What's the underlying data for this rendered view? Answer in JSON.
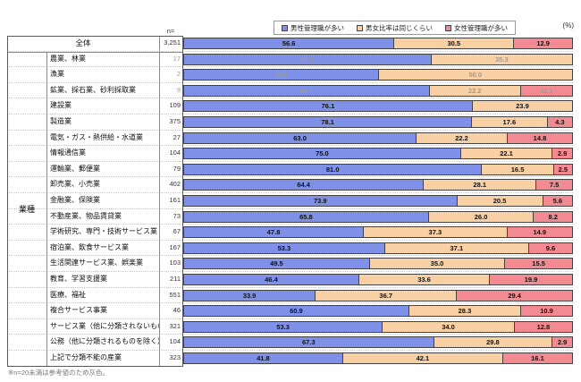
{
  "unit_label": "(%)",
  "n_header": "n=",
  "group_label": "業種",
  "footnote": "※n=20未満は参考値のため灰色。",
  "total_n": "3,251",
  "chart_data": {
    "type": "bar",
    "stacked": true,
    "orientation": "horizontal",
    "unit": "%",
    "xlim": [
      0,
      100
    ],
    "legend_position": "top",
    "grid": false,
    "series": [
      {
        "name": "男性管理職が多い",
        "color": "#7E90E8",
        "edge": "#434343"
      },
      {
        "name": "男女比率は同じくらい",
        "color": "#F8D0A4",
        "edge": "#434343"
      },
      {
        "name": "女性管理職が多い",
        "color": "#F38A92",
        "edge": "#434343"
      }
    ],
    "reference_note": "n<20 rows shown in gray",
    "rows": [
      {
        "label": "全体",
        "n": "3,251",
        "values": [
          56.6,
          30.5,
          12.9
        ],
        "reference": false,
        "total": true
      },
      {
        "label": "農業、林業",
        "n": "17",
        "values": [
          64.7,
          35.3,
          0
        ],
        "reference": true,
        "total": false
      },
      {
        "label": "漁業",
        "n": "2",
        "values": [
          50.0,
          50.0,
          0
        ],
        "reference": true,
        "total": false
      },
      {
        "label": "鉱業、採石業、砂利採取業",
        "n": "9",
        "values": [
          66.7,
          22.2,
          11.1
        ],
        "reference": true,
        "total": false
      },
      {
        "label": "建設業",
        "n": "109",
        "values": [
          76.1,
          23.9,
          0
        ],
        "reference": false,
        "total": false
      },
      {
        "label": "製造業",
        "n": "375",
        "values": [
          78.1,
          17.6,
          4.3
        ],
        "reference": false,
        "total": false
      },
      {
        "label": "電気・ガス・熱供給・水道業",
        "n": "27",
        "values": [
          63.0,
          22.2,
          14.8
        ],
        "reference": false,
        "total": false
      },
      {
        "label": "情報通信業",
        "n": "104",
        "values": [
          75.0,
          22.1,
          2.9
        ],
        "reference": false,
        "total": false
      },
      {
        "label": "運輸業、郵便業",
        "n": "79",
        "values": [
          81.0,
          16.5,
          2.5
        ],
        "reference": false,
        "total": false
      },
      {
        "label": "卸売業、小売業",
        "n": "402",
        "values": [
          64.4,
          28.1,
          7.5
        ],
        "reference": false,
        "total": false
      },
      {
        "label": "金融業、保険業",
        "n": "161",
        "values": [
          73.9,
          20.5,
          5.6
        ],
        "reference": false,
        "total": false
      },
      {
        "label": "不動産業、物品賃貸業",
        "n": "73",
        "values": [
          65.8,
          26.0,
          8.2
        ],
        "reference": false,
        "total": false
      },
      {
        "label": "学術研究、専門・技術サービス業",
        "n": "67",
        "values": [
          47.8,
          37.3,
          14.9
        ],
        "reference": false,
        "total": false
      },
      {
        "label": "宿泊業、飲食サービス業",
        "n": "167",
        "values": [
          53.3,
          37.1,
          9.6
        ],
        "reference": false,
        "total": false
      },
      {
        "label": "生活関連サービス業、娯楽業",
        "n": "103",
        "values": [
          49.5,
          35.0,
          15.5
        ],
        "reference": false,
        "total": false
      },
      {
        "label": "教育、学習支援業",
        "n": "211",
        "values": [
          46.4,
          33.6,
          19.9
        ],
        "reference": false,
        "total": false
      },
      {
        "label": "医療、福祉",
        "n": "551",
        "values": [
          33.9,
          36.7,
          29.4
        ],
        "reference": false,
        "total": false
      },
      {
        "label": "複合サービス事業",
        "n": "46",
        "values": [
          60.9,
          28.3,
          10.9
        ],
        "reference": false,
        "total": false
      },
      {
        "label": "サービス業（他に分類されないもの）",
        "n": "321",
        "values": [
          53.3,
          34.0,
          12.8
        ],
        "reference": false,
        "total": false
      },
      {
        "label": "公務（他に分類されるものを除く）",
        "n": "104",
        "values": [
          67.3,
          29.8,
          2.9
        ],
        "reference": false,
        "total": false
      },
      {
        "label": "上記で分類不能の産業",
        "n": "323",
        "values": [
          41.8,
          42.1,
          16.1
        ],
        "reference": false,
        "total": false
      }
    ]
  }
}
